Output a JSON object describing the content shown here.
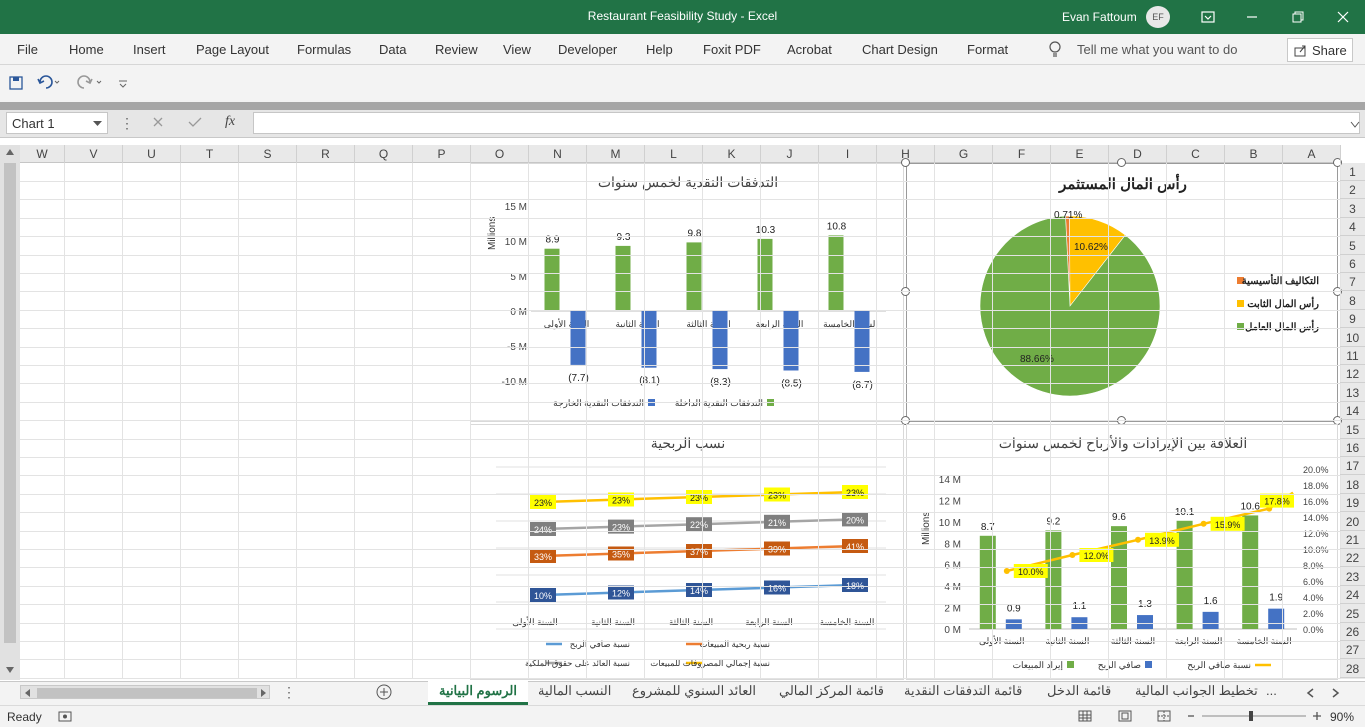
{
  "window": {
    "title": "Restaurant Feasibility Study  -  Excel",
    "user": "Evan Fattoum",
    "initials": "EF"
  },
  "menu": [
    "File",
    "Home",
    "Insert",
    "Page Layout",
    "Formulas",
    "Data",
    "Review",
    "View",
    "Developer",
    "Help",
    "Foxit PDF",
    "Acrobat",
    "Chart Design",
    "Format"
  ],
  "tell_me": "Tell me what you want to do",
  "share": "Share",
  "name_box": "Chart 1",
  "fx": "fx",
  "columns": [
    "W",
    "V",
    "U",
    "T",
    "S",
    "R",
    "Q",
    "P",
    "O",
    "N",
    "M",
    "L",
    "K",
    "J",
    "I",
    "H",
    "G",
    "F",
    "E",
    "D",
    "C",
    "B",
    "A"
  ],
  "rows": [
    "1",
    "2",
    "3",
    "4",
    "5",
    "6",
    "7",
    "8",
    "9",
    "10",
    "11",
    "12",
    "13",
    "14",
    "15",
    "16",
    "17",
    "18",
    "19",
    "20",
    "21",
    "22",
    "23",
    "24",
    "25",
    "26",
    "27",
    "28"
  ],
  "sheet_tabs": {
    "active": "الرسوم البيانية",
    "others": [
      "النسب المالية",
      "العائد السنوي للمشروع",
      "قائمة المركز المالي",
      "قائمة التدفقات النقدية",
      "قائمة الدخل",
      "تخطيط الجوانب المالية",
      "..."
    ]
  },
  "status": "Ready",
  "zoom": "90%",
  "colors": {
    "green": "#217346",
    "bar_green": "#70ad47",
    "bar_blue": "#4472c4",
    "orange": "#ed7d31",
    "yellow": "#ffc000",
    "gray": "#a5a5a5",
    "teal": "#5b9bd5"
  },
  "chart_data": [
    {
      "type": "bar",
      "title": "التدفقات النقدية لخمس سنوات",
      "ylabel": "Millions",
      "categories": [
        "السنة الأولى",
        "السنة الثانية",
        "السنة الثالثة",
        "السنة الرابعة",
        "السنة الخامسة"
      ],
      "series": [
        {
          "name": "التدفقات النقدية الداخلة",
          "values": [
            8.9,
            9.3,
            9.8,
            10.3,
            10.8
          ],
          "labels": [
            "8.9",
            "9.3",
            "9.8",
            "10.3",
            "10.8"
          ]
        },
        {
          "name": "التدفقات النقدية الخارجة",
          "values": [
            -7.7,
            -8.1,
            -8.3,
            -8.5,
            -8.7
          ],
          "labels": [
            "(7.7)",
            "(8.1)",
            "(8.3)",
            "(8.5)",
            "(8.7)"
          ]
        }
      ],
      "yticks": [
        "15 M",
        "10 M",
        "5 M",
        "0 M",
        "-5 M",
        "-10 M"
      ],
      "ylim": [
        -10,
        15
      ]
    },
    {
      "type": "pie",
      "title": "رأس المال المستثمر",
      "slices": [
        {
          "name": "التكاليف التأسيسية",
          "value": 0.71,
          "label": "0.71%"
        },
        {
          "name": "رأس المال الثابت",
          "value": 10.62,
          "label": "10.62%"
        },
        {
          "name": "رأس المال العامل",
          "value": 88.66,
          "label": "88.66%"
        }
      ]
    },
    {
      "type": "line",
      "title": "نسب الربحية",
      "categories": [
        "السنة الأولى",
        "السنة الثانية",
        "السنة الثالثة",
        "السنة الرابعة",
        "السنة الخامسة"
      ],
      "series": [
        {
          "name": "نسبة إجمالي المصروفات للمبيعات",
          "values": [
            23,
            23,
            23,
            23,
            23
          ],
          "labels": [
            "23%",
            "23%",
            "23%",
            "23%",
            "23%"
          ]
        },
        {
          "name": "نسبة العائد على حقوق الملكية",
          "values": [
            24,
            23,
            22,
            21,
            20
          ],
          "labels": [
            "24%",
            "23%",
            "22%",
            "21%",
            "20%"
          ]
        },
        {
          "name": "نسبة ربحية المبيعات",
          "values": [
            33,
            35,
            37,
            39,
            41
          ],
          "labels": [
            "33%",
            "35%",
            "37%",
            "39%",
            "41%"
          ]
        },
        {
          "name": "نسبة صافي الربح",
          "values": [
            10,
            12,
            14,
            16,
            18
          ],
          "labels": [
            "10%",
            "12%",
            "14%",
            "16%",
            "18%"
          ]
        }
      ]
    },
    {
      "type": "bar",
      "title": "العلاقة بين الإيرادات والأرباح لخمس سنوات",
      "ylabel": "Millions",
      "categories": [
        "السنة الأولى",
        "السنة الثانية",
        "السنة الثالثة",
        "السنة الرابعة",
        "السنة الخامسة"
      ],
      "series": [
        {
          "name": "إيراد المبيعات",
          "values": [
            8.7,
            9.2,
            9.6,
            10.1,
            10.6
          ],
          "labels": [
            "8.7",
            "9.2",
            "9.6",
            "10.1",
            "10.6"
          ]
        },
        {
          "name": "صافي الربح",
          "values": [
            0.9,
            1.1,
            1.3,
            1.6,
            1.9
          ],
          "labels": [
            "0.9",
            "1.1",
            "1.3",
            "1.6",
            "1.9"
          ]
        },
        {
          "name": "نسبة صافي الربح",
          "values": [
            10.0,
            12.0,
            13.9,
            15.9,
            17.8
          ],
          "labels": [
            "10.0%",
            "12.0%",
            "13.9%",
            "15.9%",
            "17.8%"
          ],
          "axis": "secondary"
        }
      ],
      "yticks": [
        "14 M",
        "12 M",
        "10 M",
        "8 M",
        "6 M",
        "4 M",
        "2 M",
        "0 M"
      ],
      "y2ticks": [
        "20.0%",
        "18.0%",
        "16.0%",
        "14.0%",
        "12.0%",
        "10.0%",
        "8.0%",
        "6.0%",
        "4.0%",
        "2.0%",
        "0.0%"
      ],
      "ylim": [
        0,
        14
      ],
      "y2lim": [
        0,
        20
      ]
    }
  ]
}
